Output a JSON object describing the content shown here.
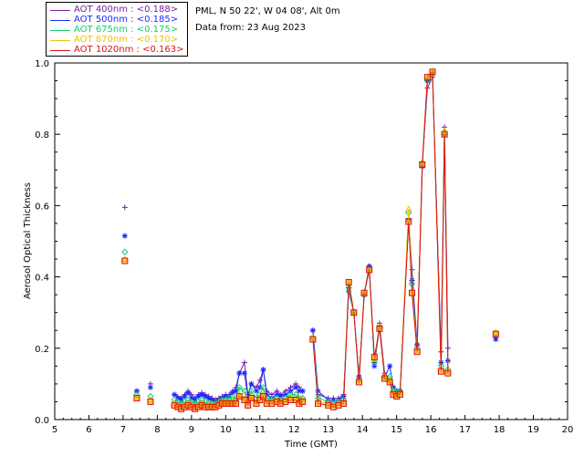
{
  "legend": [
    {
      "label": "AOT  400nm : <0.188>",
      "color": "#7a1fa2"
    },
    {
      "label": "AOT  500nm : <0.185>",
      "color": "#1a2bff"
    },
    {
      "label": "AOT  675nm : <0.175>",
      "color": "#10d070"
    },
    {
      "label": "AOT  870nm : <0.170>",
      "color": "#f0c000"
    },
    {
      "label": "AOT 1020nm : <0.163>",
      "color": "#e01010"
    }
  ],
  "info": {
    "site": "PML, N 50 22', W 04 08', Alt 0m",
    "date": "Data from: 23 Aug 2023"
  },
  "chart_data": {
    "type": "line",
    "xlabel": "Time (GMT)",
    "ylabel": "Aerosol Optical Thickness",
    "xlim": [
      5,
      20
    ],
    "ylim": [
      0,
      1.0
    ],
    "x_ticks": [
      "5",
      "6",
      "7",
      "8",
      "9",
      "10",
      "11",
      "12",
      "13",
      "14",
      "15",
      "16",
      "17",
      "18",
      "19",
      "20"
    ],
    "y_ticks": [
      "0.0",
      "0.2",
      "0.4",
      "0.6",
      "0.8",
      "1.0"
    ],
    "grid": false,
    "legend_position": "top-left outside",
    "x": [
      7.05,
      7.4,
      7.8,
      8.5,
      8.6,
      8.7,
      8.8,
      8.9,
      9.0,
      9.1,
      9.2,
      9.3,
      9.4,
      9.5,
      9.6,
      9.7,
      9.8,
      9.9,
      10.0,
      10.1,
      10.2,
      10.3,
      10.4,
      10.55,
      10.65,
      10.75,
      10.9,
      11.0,
      11.1,
      11.2,
      11.35,
      11.5,
      11.6,
      11.75,
      11.9,
      12.05,
      12.15,
      12.25,
      12.55,
      12.7,
      13.0,
      13.15,
      13.3,
      13.45,
      13.6,
      13.75,
      13.9,
      14.05,
      14.2,
      14.35,
      14.5,
      14.65,
      14.8,
      14.9,
      15.0,
      15.1,
      15.35,
      15.45,
      15.6,
      15.75,
      15.9,
      16.05,
      16.3,
      16.4,
      16.5,
      17.9
    ],
    "series": [
      {
        "name": "AOT  400nm",
        "values": [
          0.595,
          0.08,
          0.1,
          0.07,
          0.065,
          0.06,
          0.07,
          0.08,
          0.07,
          0.06,
          0.07,
          0.075,
          0.07,
          0.065,
          0.06,
          0.055,
          0.06,
          0.065,
          0.07,
          0.07,
          0.08,
          0.09,
          0.13,
          0.16,
          0.07,
          0.1,
          0.09,
          0.11,
          0.14,
          0.08,
          0.07,
          0.08,
          0.07,
          0.08,
          0.09,
          0.1,
          0.09,
          0.08,
          0.25,
          0.07,
          0.06,
          0.06,
          0.06,
          0.07,
          0.37,
          0.3,
          0.12,
          0.35,
          0.43,
          0.16,
          0.27,
          0.13,
          0.11,
          0.09,
          0.08,
          0.08,
          0.56,
          0.42,
          0.21,
          0.72,
          0.93,
          0.96,
          0.19,
          0.82,
          0.2,
          0.23
        ]
      },
      {
        "name": "AOT  500nm",
        "values": [
          0.515,
          0.08,
          0.09,
          0.07,
          0.06,
          0.055,
          0.065,
          0.075,
          0.06,
          0.055,
          0.065,
          0.07,
          0.065,
          0.06,
          0.055,
          0.05,
          0.055,
          0.06,
          0.065,
          0.065,
          0.075,
          0.08,
          0.13,
          0.13,
          0.06,
          0.1,
          0.08,
          0.09,
          0.14,
          0.07,
          0.06,
          0.07,
          0.065,
          0.07,
          0.08,
          0.09,
          0.08,
          0.08,
          0.25,
          0.08,
          0.055,
          0.055,
          0.055,
          0.065,
          0.36,
          0.3,
          0.12,
          0.35,
          0.43,
          0.15,
          0.26,
          0.12,
          0.15,
          0.09,
          0.08,
          0.08,
          0.56,
          0.39,
          0.21,
          0.71,
          0.95,
          0.97,
          0.16,
          0.8,
          0.165,
          0.225
        ]
      },
      {
        "name": "AOT  675nm",
        "values": [
          0.47,
          0.07,
          0.065,
          0.055,
          0.05,
          0.045,
          0.05,
          0.055,
          0.05,
          0.045,
          0.05,
          0.055,
          0.05,
          0.045,
          0.045,
          0.045,
          0.05,
          0.055,
          0.055,
          0.06,
          0.06,
          0.06,
          0.09,
          0.08,
          0.05,
          0.08,
          0.06,
          0.07,
          0.09,
          0.06,
          0.055,
          0.06,
          0.055,
          0.06,
          0.07,
          0.07,
          0.06,
          0.06,
          0.23,
          0.06,
          0.05,
          0.045,
          0.05,
          0.055,
          0.37,
          0.3,
          0.11,
          0.35,
          0.42,
          0.16,
          0.26,
          0.12,
          0.12,
          0.08,
          0.075,
          0.08,
          0.58,
          0.38,
          0.2,
          0.72,
          0.95,
          0.97,
          0.15,
          0.8,
          0.14,
          0.24
        ]
      },
      {
        "name": "AOT  870nm",
        "values": [
          0.45,
          0.065,
          0.055,
          0.045,
          0.04,
          0.035,
          0.04,
          0.045,
          0.04,
          0.035,
          0.04,
          0.045,
          0.04,
          0.04,
          0.04,
          0.04,
          0.045,
          0.05,
          0.05,
          0.05,
          0.05,
          0.05,
          0.07,
          0.06,
          0.045,
          0.065,
          0.05,
          0.06,
          0.07,
          0.05,
          0.05,
          0.055,
          0.05,
          0.055,
          0.06,
          0.06,
          0.05,
          0.055,
          0.23,
          0.05,
          0.045,
          0.04,
          0.045,
          0.05,
          0.385,
          0.3,
          0.11,
          0.355,
          0.42,
          0.17,
          0.26,
          0.12,
          0.11,
          0.075,
          0.07,
          0.075,
          0.59,
          0.36,
          0.195,
          0.72,
          0.96,
          0.975,
          0.14,
          0.81,
          0.135,
          0.245
        ]
      },
      {
        "name": "AOT 1020nm",
        "values": [
          0.445,
          0.06,
          0.05,
          0.04,
          0.035,
          0.03,
          0.035,
          0.04,
          0.035,
          0.03,
          0.035,
          0.04,
          0.035,
          0.035,
          0.035,
          0.035,
          0.04,
          0.045,
          0.045,
          0.045,
          0.045,
          0.045,
          0.065,
          0.055,
          0.04,
          0.06,
          0.045,
          0.055,
          0.065,
          0.045,
          0.045,
          0.05,
          0.045,
          0.05,
          0.055,
          0.055,
          0.045,
          0.05,
          0.225,
          0.045,
          0.04,
          0.035,
          0.04,
          0.045,
          0.385,
          0.3,
          0.105,
          0.355,
          0.42,
          0.175,
          0.255,
          0.115,
          0.105,
          0.07,
          0.065,
          0.07,
          0.555,
          0.355,
          0.19,
          0.715,
          0.96,
          0.975,
          0.135,
          0.8,
          0.13,
          0.24
        ]
      }
    ],
    "segment_breaks_after_index": [
      0,
      1,
      2,
      37,
      64
    ]
  }
}
